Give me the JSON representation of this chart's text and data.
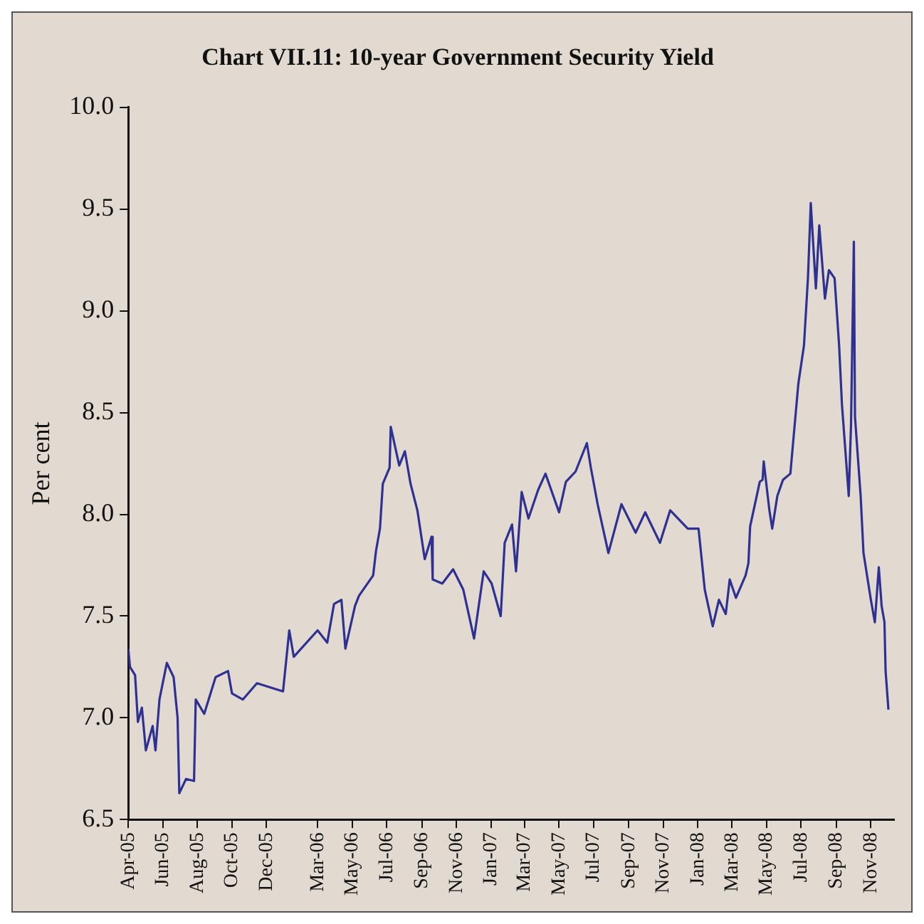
{
  "chart_data": {
    "type": "line",
    "title": "Chart VII.11: 10-year Government Security Yield",
    "ylabel": "Per cent",
    "color": "#2e3192",
    "legend": false,
    "grid": false,
    "marker": "none",
    "xlim": [
      "2005-04-01",
      "2008-12-12"
    ],
    "xticks": [
      {
        "value": "2005-04-01",
        "label": "Apr-05"
      },
      {
        "value": "2005-06-01",
        "label": "Jun-05"
      },
      {
        "value": "2005-08-01",
        "label": "Aug-05"
      },
      {
        "value": "2005-10-01",
        "label": "Oct-05"
      },
      {
        "value": "2005-12-01",
        "label": "Dec-05"
      },
      {
        "value": "2006-03-01",
        "label": "Mar-06"
      },
      {
        "value": "2006-05-01",
        "label": "May-06"
      },
      {
        "value": "2006-07-01",
        "label": "Jul-06"
      },
      {
        "value": "2006-09-01",
        "label": "Sep-06"
      },
      {
        "value": "2006-11-01",
        "label": "Nov-06"
      },
      {
        "value": "2007-01-01",
        "label": "Jan-07"
      },
      {
        "value": "2007-03-01",
        "label": "Mar-07"
      },
      {
        "value": "2007-05-01",
        "label": "May-07"
      },
      {
        "value": "2007-07-01",
        "label": "Jul-07"
      },
      {
        "value": "2007-09-01",
        "label": "Sep-07"
      },
      {
        "value": "2007-11-01",
        "label": "Nov-07"
      },
      {
        "value": "2008-01-01",
        "label": "Jan-08"
      },
      {
        "value": "2008-03-01",
        "label": "Mar-08"
      },
      {
        "value": "2008-05-01",
        "label": "May-08"
      },
      {
        "value": "2008-07-01",
        "label": "Jul-08"
      },
      {
        "value": "2008-09-01",
        "label": "Sep-08"
      },
      {
        "value": "2008-11-01",
        "label": "Nov-08"
      }
    ],
    "ylim": [
      6.5,
      10
    ],
    "yticks": [
      6.5,
      {
        "value": 7,
        "label": "7.0"
      },
      7.5,
      {
        "value": 8,
        "label": "8.0"
      },
      8.5,
      {
        "value": 9,
        "label": "9.0"
      },
      9.5,
      {
        "value": 10,
        "label": "10.0"
      }
    ],
    "x": [
      "2005-04-01",
      "2005-04-04",
      "2005-04-13",
      "2005-04-18",
      "2005-04-25",
      "2005-05-02",
      "2005-05-14",
      "2005-05-19",
      "2005-05-26",
      "2005-06-08",
      "2005-06-20",
      "2005-06-27",
      "2005-06-30",
      "2005-07-12",
      "2005-07-26",
      "2005-07-29",
      "2005-08-13",
      "2005-09-02",
      "2005-09-24",
      "2005-10-01",
      "2005-10-20",
      "2005-11-14",
      "2005-12-30",
      "2006-01-10",
      "2006-01-18",
      "2006-03-01",
      "2006-03-18",
      "2006-03-30",
      "2006-04-12",
      "2006-04-19",
      "2006-05-06",
      "2006-05-13",
      "2006-06-07",
      "2006-06-12",
      "2006-06-19",
      "2006-06-24",
      "2006-07-06",
      "2006-07-08",
      "2006-07-23",
      "2006-08-02",
      "2006-08-12",
      "2006-08-24",
      "2006-09-06",
      "2006-09-18",
      "2006-09-20",
      "2006-10-07",
      "2006-10-26",
      "2006-11-13",
      "2006-12-02",
      "2006-12-19",
      "2007-01-02",
      "2007-01-18",
      "2007-01-25",
      "2007-02-07",
      "2007-02-14",
      "2007-02-24",
      "2007-03-08",
      "2007-03-25",
      "2007-04-07",
      "2007-05-01",
      "2007-05-13",
      "2007-05-30",
      "2007-06-19",
      "2007-06-26",
      "2007-07-08",
      "2007-07-27",
      "2007-08-19",
      "2007-09-13",
      "2007-09-30",
      "2007-10-26",
      "2007-11-13",
      "2007-12-14",
      "2008-01-02",
      "2008-01-13",
      "2008-01-27",
      "2008-02-07",
      "2008-02-19",
      "2008-02-26",
      "2008-03-08",
      "2008-03-25",
      "2008-03-30",
      "2008-04-02",
      "2008-04-19",
      "2008-04-24",
      "2008-04-26",
      "2008-05-06",
      "2008-05-11",
      "2008-05-20",
      "2008-05-30",
      "2008-06-12",
      "2008-06-19",
      "2008-06-26",
      "2008-07-06",
      "2008-07-13",
      "2008-07-18",
      "2008-07-27",
      "2008-08-02",
      "2008-08-12",
      "2008-08-19",
      "2008-08-29",
      "2008-09-06",
      "2008-09-11",
      "2008-09-23",
      "2008-09-27",
      "2008-10-02",
      "2008-10-04",
      "2008-10-14",
      "2008-10-19",
      "2008-11-01",
      "2008-11-08",
      "2008-11-15",
      "2008-11-20",
      "2008-11-25",
      "2008-11-27",
      "2008-12-02"
    ],
    "values": [
      7.34,
      7.25,
      7.21,
      6.98,
      7.05,
      6.84,
      6.96,
      6.84,
      7.09,
      7.27,
      7.2,
      7.0,
      6.63,
      6.7,
      6.69,
      7.09,
      7.02,
      7.2,
      7.23,
      7.12,
      7.09,
      7.17,
      7.13,
      7.43,
      7.3,
      7.43,
      7.37,
      7.56,
      7.58,
      7.34,
      7.55,
      7.6,
      7.7,
      7.82,
      7.93,
      8.15,
      8.23,
      8.43,
      8.24,
      8.31,
      8.15,
      8.02,
      7.78,
      7.89,
      7.68,
      7.66,
      7.73,
      7.63,
      7.39,
      7.72,
      7.66,
      7.5,
      7.86,
      7.95,
      7.72,
      8.11,
      7.98,
      8.12,
      8.2,
      8.01,
      8.16,
      8.21,
      8.35,
      8.23,
      8.05,
      7.81,
      8.05,
      7.91,
      8.01,
      7.86,
      8.02,
      7.93,
      7.93,
      7.63,
      7.45,
      7.58,
      7.51,
      7.68,
      7.59,
      7.7,
      7.76,
      7.94,
      8.16,
      8.17,
      8.26,
      8.02,
      7.93,
      8.09,
      8.17,
      8.2,
      8.42,
      8.64,
      8.83,
      9.16,
      9.53,
      9.11,
      9.42,
      9.06,
      9.2,
      9.16,
      8.83,
      8.54,
      8.09,
      8.44,
      9.34,
      8.48,
      8.09,
      7.81,
      7.58,
      7.47,
      7.74,
      7.55,
      7.47,
      7.23,
      7.04
    ]
  }
}
